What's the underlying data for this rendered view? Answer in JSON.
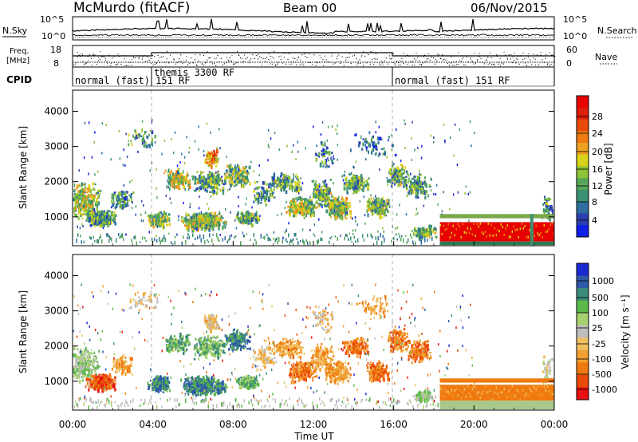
{
  "header": {
    "station": "McMurdo (fitACF)",
    "beam": "Beam 00",
    "date": "06/Nov/2015"
  },
  "top_panels": {
    "nsky_label": "N.Sky",
    "nsearch_label": "N.Search",
    "freq_label_line1": "Freq.",
    "freq_label_line2": "[MHz]",
    "nave_label": "Nave",
    "cpid_label": "CPID",
    "noise_left_ticks": [
      "10^5",
      "10^0"
    ],
    "noise_right_ticks": [
      "10^5",
      "10^0"
    ],
    "freq_ticks": [
      "18",
      "8"
    ],
    "nave_ticks": [
      "60",
      "0"
    ],
    "cpid_segments": [
      {
        "label": "normal (fast) 151 RF",
        "start_h": 0,
        "end_h": 4
      },
      {
        "label": "themis 3300 RF",
        "start_h": 4,
        "end_h": 16
      },
      {
        "label": "normal (fast) 151 RF",
        "start_h": 16,
        "end_h": 24
      }
    ]
  },
  "chart_data": [
    {
      "type": "heatmap",
      "name": "power",
      "ylabel": "Slant Range [km]",
      "y_ticks": [
        1000,
        2000,
        3000,
        4000
      ],
      "ylim": [
        180,
        4600
      ],
      "xlim": [
        0,
        24
      ],
      "colorbar_label": "Power [dB]",
      "colorbar_ticks": [
        "4",
        "8",
        "12",
        "16",
        "20",
        "24",
        "28"
      ],
      "colorbar_colors": [
        "#0f1fe8",
        "#2b3fb0",
        "#2f6fa0",
        "#3a9070",
        "#56a65a",
        "#8cc236",
        "#d8d21a",
        "#f0a020",
        "#f07a10",
        "#e84a0a",
        "#e01c0c",
        "#e80000"
      ]
    },
    {
      "type": "heatmap",
      "name": "velocity",
      "ylabel": "Slant Range [km]",
      "y_ticks": [
        1000,
        2000,
        3000,
        4000
      ],
      "ylim": [
        180,
        4600
      ],
      "xlim": [
        0,
        24
      ],
      "colorbar_label": "Velocity [m s⁻¹]",
      "colorbar_ticks": [
        "1000",
        "500",
        "100",
        "25",
        "-25",
        "-100",
        "-500",
        "-1000"
      ],
      "colorbar_colors": [
        "#1a2ad0",
        "#2f5aa8",
        "#3c8a78",
        "#5cb84a",
        "#a8d070",
        "#bebebe",
        "#f0c060",
        "#f0a030",
        "#f07a10",
        "#e84a0a",
        "#e81010"
      ]
    }
  ],
  "xaxis": {
    "label": "Time UT",
    "tick_labels": [
      "00:00",
      "04:00",
      "08:00",
      "12:00",
      "16:00",
      "20:00",
      "00:00"
    ]
  }
}
